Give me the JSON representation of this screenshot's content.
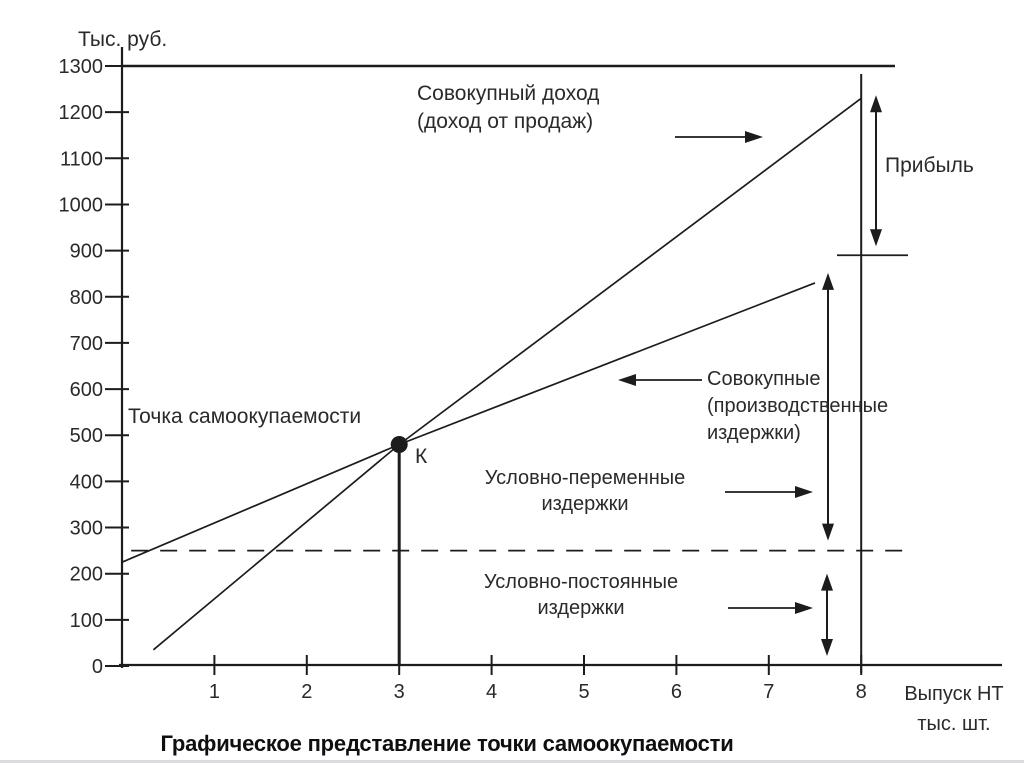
{
  "colors": {
    "ink": "#1c1c1c",
    "text": "#2a2a2a",
    "caption": "#0f0f0f",
    "background": "#ffffff",
    "footer_strip": "#d9dde2"
  },
  "chart_data": {
    "type": "line",
    "title": "Графическое представление точки самоокупаемости",
    "xlabel": "Выпуск НТ, тыс. шт.",
    "ylabel": "Тыс. руб.",
    "xlim": [
      0,
      9.5
    ],
    "ylim": [
      0,
      1300
    ],
    "grid": false,
    "x_ticks": [
      1,
      2,
      3,
      4,
      5,
      6,
      7,
      8
    ],
    "y_ticks": [
      0,
      100,
      200,
      300,
      400,
      500,
      600,
      700,
      800,
      900,
      1000,
      1100,
      1200,
      1300
    ],
    "series": [
      {
        "name": "Совокупный доход (доход от продаж)",
        "style": "solid",
        "points": [
          [
            0.34,
            35
          ],
          [
            3,
            480
          ],
          [
            8,
            1230
          ]
        ]
      },
      {
        "name": "Совокупные (производственные) издержки",
        "style": "solid",
        "points": [
          [
            0,
            225
          ],
          [
            3,
            480
          ],
          [
            7.5,
            830
          ]
        ]
      },
      {
        "name": "Условно-постоянные издержки",
        "style": "dashed",
        "points": [
          [
            0.1,
            250
          ],
          [
            8.5,
            250
          ]
        ]
      }
    ],
    "break_even_point": {
      "label": "К",
      "x": 3,
      "y": 480,
      "callout": "Точка самоокупаемости"
    },
    "reference_values": {
      "revenue_at_x8": 1230,
      "total_costs_at_x8": 890,
      "fixed_costs_level": 250
    },
    "annotations": [
      "Прибыль",
      "Совокупные (производственные издержки)",
      "Условно-переменные издержки",
      "Условно-постоянные издержки"
    ]
  },
  "labels": {
    "y_axis_title": "Тыс. руб.",
    "revenue_line1": "Совокупный доход",
    "revenue_line2": "(доход от продаж)",
    "profit": "Прибыль",
    "breakeven_callout": "Точка самоокупаемости",
    "breakeven_point": "К",
    "costs_line1": "Совокупные",
    "costs_line2": "(производственные",
    "costs_line3": "издержки)",
    "variable_line1": "Условно-переменные",
    "variable_line2": "издержки",
    "fixed_line1": "Условно-постоянные",
    "fixed_line2": "издержки",
    "x_axis_title_line1": "Выпуск НТ",
    "x_axis_title_line2": "тыс. шт.",
    "caption": "Графическое представление точки самоокупаемости"
  }
}
